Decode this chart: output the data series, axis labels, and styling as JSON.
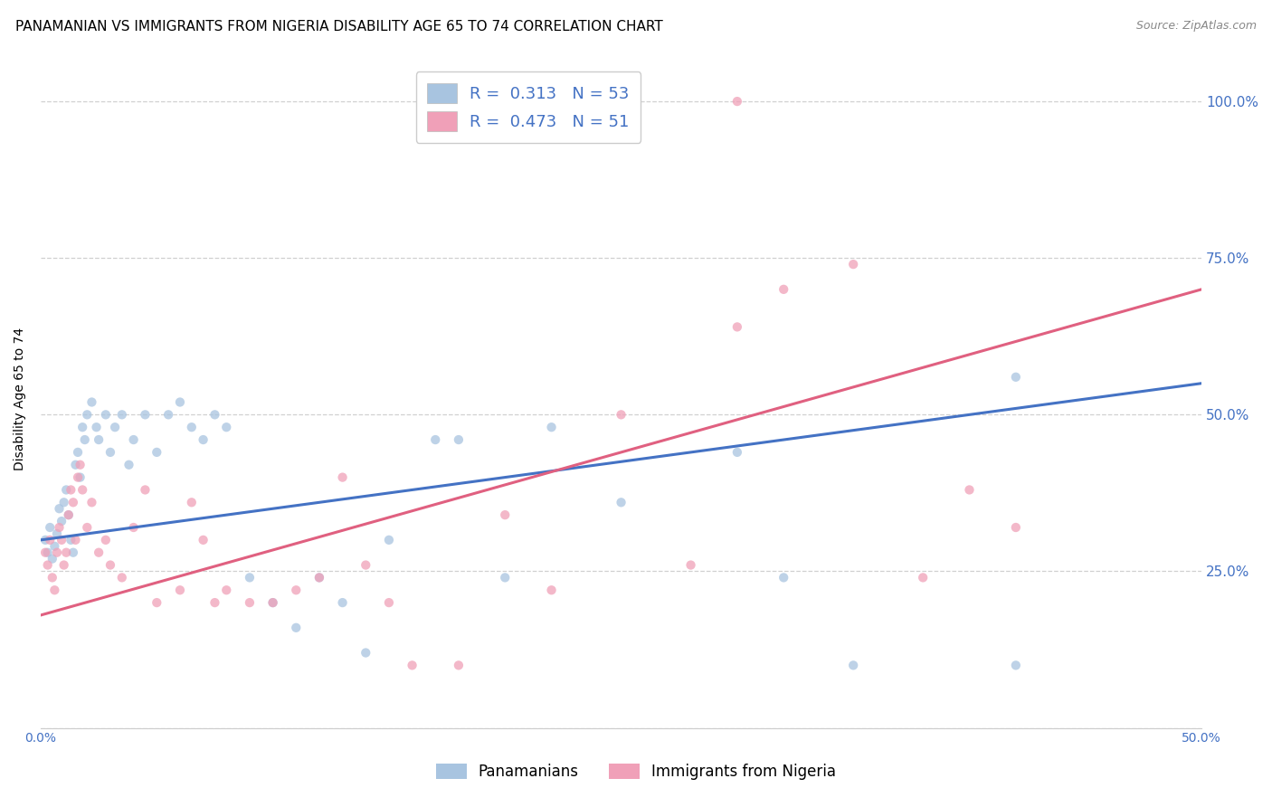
{
  "title": "PANAMANIAN VS IMMIGRANTS FROM NIGERIA DISABILITY AGE 65 TO 74 CORRELATION CHART",
  "source": "Source: ZipAtlas.com",
  "ylabel": "Disability Age 65 to 74",
  "xlim": [
    0.0,
    0.5
  ],
  "ylim": [
    0.0,
    1.05
  ],
  "legend_label1": "Panamanians",
  "legend_label2": "Immigrants from Nigeria",
  "R1": 0.313,
  "N1": 53,
  "R2": 0.473,
  "N2": 51,
  "color_blue": "#a8c4e0",
  "color_pink": "#f0a0b8",
  "line_color_blue": "#4472c4",
  "line_color_pink": "#e06080",
  "title_fontsize": 11,
  "scatter_size": 55,
  "scatter_alpha": 0.75,
  "blue_x": [
    0.002,
    0.003,
    0.004,
    0.005,
    0.006,
    0.007,
    0.008,
    0.009,
    0.01,
    0.011,
    0.012,
    0.013,
    0.014,
    0.015,
    0.016,
    0.017,
    0.018,
    0.019,
    0.02,
    0.022,
    0.024,
    0.025,
    0.028,
    0.03,
    0.032,
    0.035,
    0.038,
    0.04,
    0.045,
    0.05,
    0.055,
    0.06,
    0.065,
    0.07,
    0.075,
    0.08,
    0.09,
    0.1,
    0.11,
    0.12,
    0.13,
    0.14,
    0.15,
    0.17,
    0.18,
    0.2,
    0.22,
    0.25,
    0.3,
    0.32,
    0.35,
    0.42,
    0.42
  ],
  "blue_y": [
    0.3,
    0.28,
    0.32,
    0.27,
    0.29,
    0.31,
    0.35,
    0.33,
    0.36,
    0.38,
    0.34,
    0.3,
    0.28,
    0.42,
    0.44,
    0.4,
    0.48,
    0.46,
    0.5,
    0.52,
    0.48,
    0.46,
    0.5,
    0.44,
    0.48,
    0.5,
    0.42,
    0.46,
    0.5,
    0.44,
    0.5,
    0.52,
    0.48,
    0.46,
    0.5,
    0.48,
    0.24,
    0.2,
    0.16,
    0.24,
    0.2,
    0.12,
    0.3,
    0.46,
    0.46,
    0.24,
    0.48,
    0.36,
    0.44,
    0.24,
    0.1,
    0.1,
    0.56
  ],
  "pink_x": [
    0.002,
    0.003,
    0.004,
    0.005,
    0.006,
    0.007,
    0.008,
    0.009,
    0.01,
    0.011,
    0.012,
    0.013,
    0.014,
    0.015,
    0.016,
    0.017,
    0.018,
    0.02,
    0.022,
    0.025,
    0.028,
    0.03,
    0.035,
    0.04,
    0.045,
    0.05,
    0.06,
    0.065,
    0.07,
    0.075,
    0.08,
    0.09,
    0.1,
    0.11,
    0.12,
    0.13,
    0.14,
    0.15,
    0.16,
    0.18,
    0.2,
    0.22,
    0.25,
    0.28,
    0.3,
    0.32,
    0.35,
    0.38,
    0.4,
    0.42,
    0.3
  ],
  "pink_y": [
    0.28,
    0.26,
    0.3,
    0.24,
    0.22,
    0.28,
    0.32,
    0.3,
    0.26,
    0.28,
    0.34,
    0.38,
    0.36,
    0.3,
    0.4,
    0.42,
    0.38,
    0.32,
    0.36,
    0.28,
    0.3,
    0.26,
    0.24,
    0.32,
    0.38,
    0.2,
    0.22,
    0.36,
    0.3,
    0.2,
    0.22,
    0.2,
    0.2,
    0.22,
    0.24,
    0.4,
    0.26,
    0.2,
    0.1,
    0.1,
    0.34,
    0.22,
    0.5,
    0.26,
    0.64,
    0.7,
    0.74,
    0.24,
    0.38,
    0.32,
    1.0
  ],
  "blue_line_x0": 0.0,
  "blue_line_y0": 0.3,
  "blue_line_x1": 0.5,
  "blue_line_y1": 0.55,
  "pink_line_x0": 0.0,
  "pink_line_y0": 0.18,
  "pink_line_x1": 0.5,
  "pink_line_y1": 0.7
}
